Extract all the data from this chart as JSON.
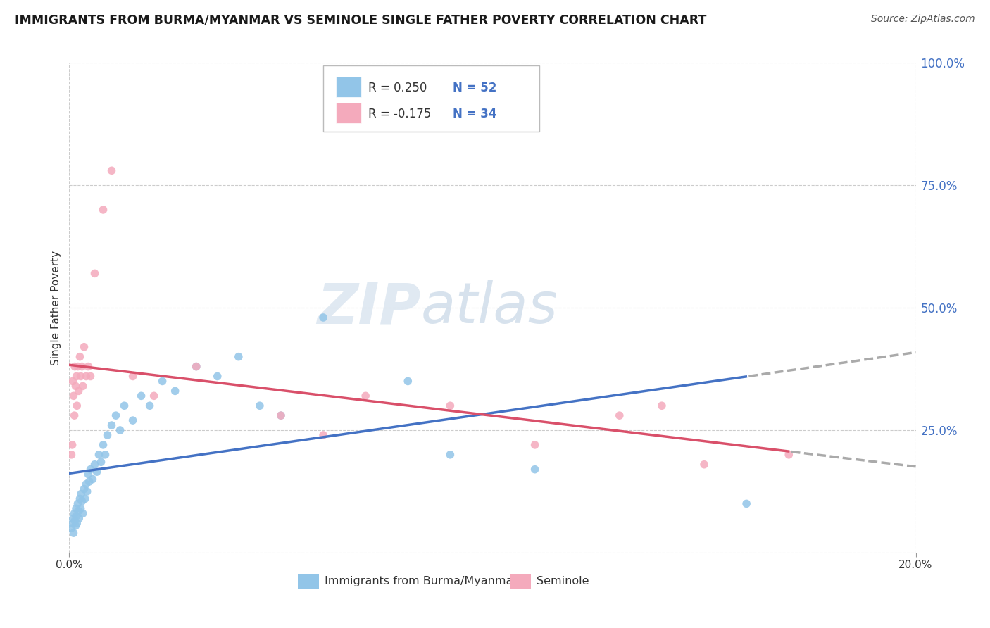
{
  "title": "IMMIGRANTS FROM BURMA/MYANMAR VS SEMINOLE SINGLE FATHER POVERTY CORRELATION CHART",
  "source": "Source: ZipAtlas.com",
  "ylabel": "Single Father Poverty",
  "blue_R_label": "R = 0.250",
  "blue_N_label": "N = 52",
  "pink_R_label": "R = -0.175",
  "pink_N_label": "N = 34",
  "legend_label_blue": "Immigrants from Burma/Myanmar",
  "legend_label_pink": "Seminole",
  "blue_color": "#92C5E8",
  "pink_color": "#F4AABC",
  "trend_blue": "#4472C4",
  "trend_pink": "#D9506A",
  "trend_dashed_color": "#AAAAAA",
  "background_color": "#FFFFFF",
  "watermark_zip": "ZIP",
  "watermark_atlas": "atlas",
  "xmin": 0.0,
  "xmax": 20.0,
  "ymin": 0.0,
  "ymax": 100.0,
  "ytick_vals": [
    0,
    25,
    50,
    75,
    100
  ],
  "ytick_labels": [
    "",
    "25.0%",
    "50.0%",
    "75.0%",
    "100.0%"
  ],
  "xtick_vals": [
    0.0,
    20.0
  ],
  "xtick_labels": [
    "0.0%",
    "20.0%"
  ],
  "grid_color": "#CCCCCC",
  "blue_dots": [
    [
      0.05,
      5.0
    ],
    [
      0.07,
      6.0
    ],
    [
      0.09,
      7.0
    ],
    [
      0.1,
      4.0
    ],
    [
      0.12,
      8.0
    ],
    [
      0.13,
      6.5
    ],
    [
      0.15,
      5.5
    ],
    [
      0.16,
      9.0
    ],
    [
      0.17,
      7.5
    ],
    [
      0.18,
      6.0
    ],
    [
      0.2,
      10.0
    ],
    [
      0.22,
      8.5
    ],
    [
      0.23,
      7.0
    ],
    [
      0.25,
      11.0
    ],
    [
      0.27,
      9.0
    ],
    [
      0.28,
      12.0
    ],
    [
      0.3,
      10.5
    ],
    [
      0.32,
      8.0
    ],
    [
      0.35,
      13.0
    ],
    [
      0.37,
      11.0
    ],
    [
      0.4,
      14.0
    ],
    [
      0.42,
      12.5
    ],
    [
      0.45,
      16.0
    ],
    [
      0.47,
      14.5
    ],
    [
      0.5,
      17.0
    ],
    [
      0.55,
      15.0
    ],
    [
      0.6,
      18.0
    ],
    [
      0.65,
      16.5
    ],
    [
      0.7,
      20.0
    ],
    [
      0.75,
      18.5
    ],
    [
      0.8,
      22.0
    ],
    [
      0.85,
      20.0
    ],
    [
      0.9,
      24.0
    ],
    [
      1.0,
      26.0
    ],
    [
      1.1,
      28.0
    ],
    [
      1.2,
      25.0
    ],
    [
      1.3,
      30.0
    ],
    [
      1.5,
      27.0
    ],
    [
      1.7,
      32.0
    ],
    [
      1.9,
      30.0
    ],
    [
      2.2,
      35.0
    ],
    [
      2.5,
      33.0
    ],
    [
      3.0,
      38.0
    ],
    [
      3.5,
      36.0
    ],
    [
      4.0,
      40.0
    ],
    [
      4.5,
      30.0
    ],
    [
      5.0,
      28.0
    ],
    [
      6.0,
      48.0
    ],
    [
      8.0,
      35.0
    ],
    [
      9.0,
      20.0
    ],
    [
      11.0,
      17.0
    ],
    [
      16.0,
      10.0
    ]
  ],
  "pink_dots": [
    [
      0.05,
      20.0
    ],
    [
      0.07,
      22.0
    ],
    [
      0.08,
      35.0
    ],
    [
      0.1,
      32.0
    ],
    [
      0.12,
      28.0
    ],
    [
      0.13,
      38.0
    ],
    [
      0.15,
      34.0
    ],
    [
      0.17,
      36.0
    ],
    [
      0.18,
      30.0
    ],
    [
      0.2,
      38.0
    ],
    [
      0.22,
      33.0
    ],
    [
      0.25,
      40.0
    ],
    [
      0.27,
      36.0
    ],
    [
      0.3,
      38.0
    ],
    [
      0.32,
      34.0
    ],
    [
      0.35,
      42.0
    ],
    [
      0.4,
      36.0
    ],
    [
      0.45,
      38.0
    ],
    [
      0.5,
      36.0
    ],
    [
      0.6,
      57.0
    ],
    [
      0.8,
      70.0
    ],
    [
      1.0,
      78.0
    ],
    [
      1.5,
      36.0
    ],
    [
      2.0,
      32.0
    ],
    [
      3.0,
      38.0
    ],
    [
      5.0,
      28.0
    ],
    [
      6.0,
      24.0
    ],
    [
      7.0,
      32.0
    ],
    [
      9.0,
      30.0
    ],
    [
      11.0,
      22.0
    ],
    [
      13.0,
      28.0
    ],
    [
      14.0,
      30.0
    ],
    [
      15.0,
      18.0
    ],
    [
      17.0,
      20.0
    ]
  ]
}
